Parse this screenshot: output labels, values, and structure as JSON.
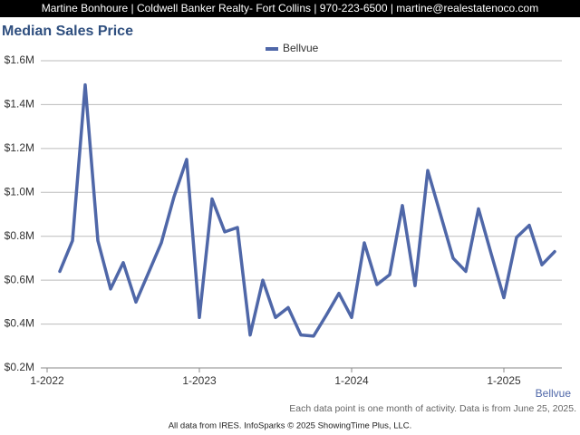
{
  "header": "Martine Bonhoure | Coldwell Banker Realty- Fort Collins | 970-223-6500 | martine@realestatenoco.com",
  "chart_data": {
    "type": "line",
    "title": "Median Sales Price",
    "categories": [
      "1-2022",
      null,
      null,
      null,
      null,
      null,
      null,
      null,
      null,
      null,
      null,
      null,
      "1-2023",
      null,
      null,
      null,
      null,
      null,
      null,
      null,
      null,
      null,
      null,
      null,
      "1-2024",
      null,
      null,
      null,
      null,
      null,
      null,
      null,
      null,
      null,
      null,
      null,
      "1-2025",
      null,
      null,
      null,
      null
    ],
    "series": [
      {
        "name": "Bellvue",
        "color": "#4f67a8",
        "values": [
          null,
          640000,
          780000,
          1490000,
          780000,
          560000,
          680000,
          500000,
          635000,
          770000,
          980000,
          1150000,
          430000,
          970000,
          820000,
          840000,
          350000,
          600000,
          430000,
          475000,
          350000,
          345000,
          440000,
          540000,
          430000,
          770000,
          580000,
          625000,
          940000,
          575000,
          1100000,
          900000,
          700000,
          640000,
          925000,
          720000,
          520000,
          795000,
          850000,
          670000,
          730000
        ]
      }
    ],
    "ylim": [
      200000,
      1600000
    ],
    "yticks": [
      {
        "value": 200000,
        "label": "$0.2M"
      },
      {
        "value": 400000,
        "label": "$0.4M"
      },
      {
        "value": 600000,
        "label": "$0.6M"
      },
      {
        "value": 800000,
        "label": "$0.8M"
      },
      {
        "value": 1000000,
        "label": "$1.0M"
      },
      {
        "value": 1200000,
        "label": "$1.2M"
      },
      {
        "value": 1400000,
        "label": "$1.4M"
      },
      {
        "value": 1600000,
        "label": "$1.6M"
      }
    ],
    "grid": true,
    "legend": "top",
    "note": "Each data point is one month of activity. Data is from June 25, 2025.",
    "source": "All data from IRES. InfoSparks © 2025 ShowingTime Plus, LLC."
  }
}
